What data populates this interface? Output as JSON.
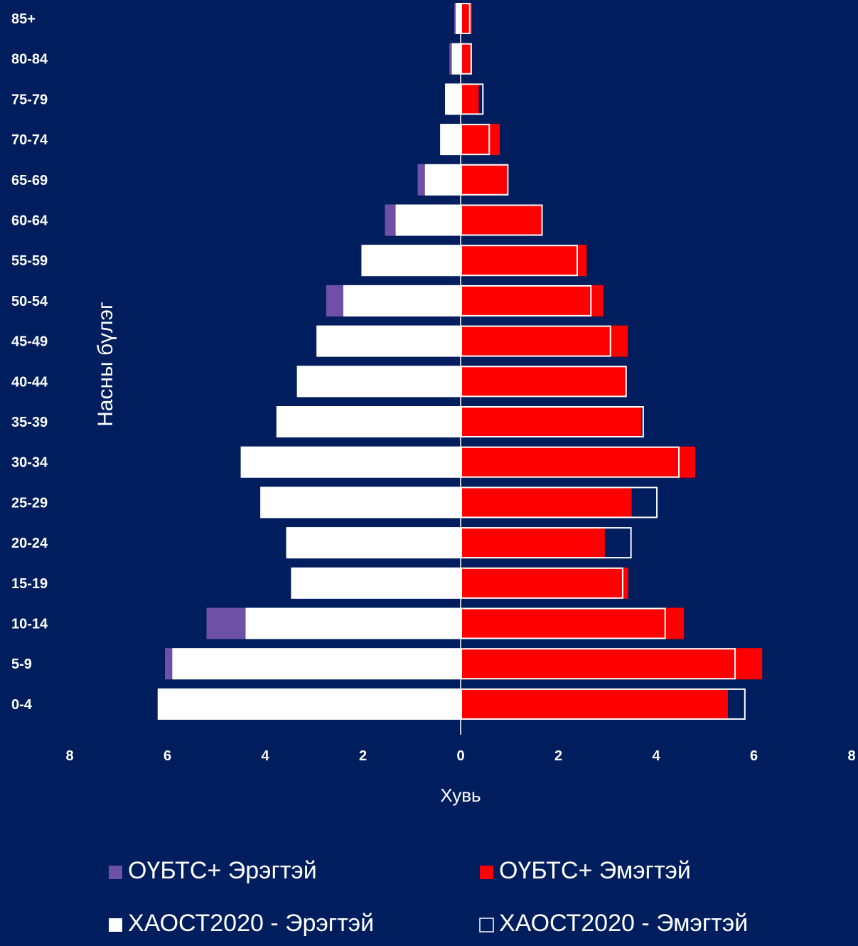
{
  "colors": {
    "background": "#001E5E",
    "male_survey": "#6E51A6",
    "female_survey": "#FF0000",
    "census_male_fill": "#FFFFFF",
    "census_female_outline": "#FFFFFF",
    "text": "#FFFFFF"
  },
  "chart_data": {
    "type": "bar",
    "orientation": "horizontal",
    "style": "population-pyramid",
    "title": "",
    "xlabel": "Хувь",
    "ylabel": "Насны бүлэг",
    "xlim": [
      -8,
      8
    ],
    "x_ticks": [
      -8,
      -6,
      -4,
      -2,
      0,
      2,
      4,
      6,
      8
    ],
    "x_tick_labels": [
      "8",
      "6",
      "4",
      "2",
      "0",
      "2",
      "4",
      "6",
      "8"
    ],
    "grid": false,
    "legend_position": "bottom",
    "categories": [
      "0-4",
      "5-9",
      "10-14",
      "15-19",
      "20-24",
      "25-29",
      "30-34",
      "35-39",
      "40-44",
      "45-49",
      "50-54",
      "55-59",
      "60-64",
      "65-69",
      "70-74",
      "75-79",
      "80-84",
      "85+"
    ],
    "series": [
      {
        "name": "ОҮБТС+ Эрэгтэй",
        "side": "male",
        "values": [
          6.1,
          6.05,
          5.2,
          3.45,
          3.55,
          4.05,
          4.5,
          3.75,
          3.35,
          2.9,
          2.75,
          2.0,
          1.55,
          0.88,
          0.35,
          0.28,
          0.23,
          0.13
        ]
      },
      {
        "name": "ОҮБТС+ Эмэгтэй",
        "side": "female",
        "values": [
          5.47,
          6.17,
          4.57,
          3.43,
          2.95,
          3.5,
          4.8,
          3.7,
          3.37,
          3.42,
          2.92,
          2.58,
          1.65,
          0.97,
          0.8,
          0.37,
          0.23,
          0.23
        ]
      },
      {
        "name": "ХАОСТ2020 - Эрэгтэй",
        "side": "male",
        "values": [
          6.2,
          5.9,
          4.4,
          3.47,
          3.57,
          4.1,
          4.5,
          3.77,
          3.35,
          2.95,
          2.4,
          2.03,
          1.33,
          0.73,
          0.42,
          0.32,
          0.18,
          0.1
        ]
      },
      {
        "name": "ХАОСТ2020 - Эмэгтэй",
        "side": "female",
        "values": [
          5.83,
          5.63,
          4.2,
          3.33,
          3.5,
          4.03,
          4.48,
          3.75,
          3.4,
          3.08,
          2.68,
          2.4,
          1.68,
          0.98,
          0.6,
          0.47,
          0.23,
          0.2
        ]
      }
    ]
  }
}
